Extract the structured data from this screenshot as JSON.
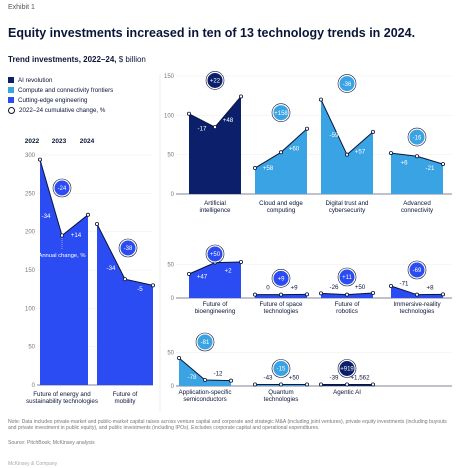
{
  "header": {
    "exhibit": "Exhibit 1",
    "title": "Equity investments increased in ten of 13 technology trends in 2024.",
    "subtitle_bold": "Trend investments, 2022–24,",
    "subtitle_unit": "$ billion"
  },
  "legend": {
    "items": [
      "AI revolution",
      "Compute and connectivity frontiers",
      "Cutting-edge engineering"
    ],
    "change_label": "2022–24 cumulative change, %"
  },
  "colors": {
    "AI revolution": "#0b1f6b",
    "Compute and connectivity frontiers": "#3aa3e3",
    "Cutting-edge engineering": "#2b4cf2",
    "line": "#0b1538",
    "grid": "#dddddd"
  },
  "chart_data": [
    {
      "type": "area",
      "panel": "left",
      "x": [
        "2022",
        "2023",
        "2024"
      ],
      "ylim": [
        0,
        300
      ],
      "yticks": [
        "300",
        "250",
        "200",
        "150",
        "100",
        "50",
        "0"
      ],
      "annotation": "Annual change, %",
      "series": [
        {
          "category": "Cutting-edge engineering",
          "label": "Future of energy and sustainability technologies",
          "values": [
            294,
            195,
            222
          ],
          "change_pct": "-24",
          "annual_changes": [
            "-34",
            "+14"
          ]
        },
        {
          "category": "Cutting-edge engineering",
          "label": "Future of mobility",
          "values": [
            210,
            138,
            130
          ],
          "change_pct": "-38",
          "annual_changes": [
            "-34",
            "-5"
          ]
        }
      ]
    },
    {
      "type": "area",
      "panel": "row1",
      "ylim": [
        0,
        150
      ],
      "yticks": [
        "150",
        "100",
        "50",
        "0"
      ],
      "series": [
        {
          "category": "AI revolution",
          "label": "Artificial intelligence",
          "values": [
            102,
            85,
            124
          ],
          "change_pct": "+22",
          "annual_changes": [
            "-17",
            "+48"
          ]
        },
        {
          "category": "Compute and connectivity frontiers",
          "label": "Cloud and edge computing",
          "values": [
            33,
            53,
            83
          ],
          "change_pct": "+158",
          "annual_changes": [
            "+58",
            "+60"
          ]
        },
        {
          "category": "Compute and connectivity frontiers",
          "label": "Digital trust and cybersecurity",
          "values": [
            120,
            50,
            79
          ],
          "change_pct": "-36",
          "annual_changes": [
            "-59",
            "+57"
          ]
        },
        {
          "category": "Compute and connectivity frontiers",
          "label": "Advanced connectivity",
          "values": [
            52,
            48,
            38
          ],
          "change_pct": "-16",
          "annual_changes": [
            "+6",
            "-21"
          ]
        }
      ]
    },
    {
      "type": "area",
      "panel": "row2",
      "ylim": [
        0,
        60
      ],
      "yticks": [
        "50",
        "0"
      ],
      "series": [
        {
          "category": "Cutting-edge engineering",
          "label": "Future of bioengineering",
          "values": [
            36,
            53,
            54
          ],
          "change_pct": "+50",
          "annual_changes": [
            "+47",
            "+2"
          ]
        },
        {
          "category": "Cutting-edge engineering",
          "label": "Future of space technologies",
          "values": [
            5,
            5,
            5.5
          ],
          "change_pct": "+9",
          "annual_changes": [
            "0",
            "+9"
          ]
        },
        {
          "category": "Cutting-edge engineering",
          "label": "Future of robotics",
          "values": [
            7,
            5,
            7.5
          ],
          "change_pct": "+11",
          "annual_changes": [
            "-26",
            "+50"
          ]
        },
        {
          "category": "Cutting-edge engineering",
          "label": "Immersive-reality technologies",
          "values": [
            18,
            5,
            5.5
          ],
          "change_pct": "-69",
          "annual_changes": [
            "-71",
            "+8"
          ]
        }
      ]
    },
    {
      "type": "area",
      "panel": "row3",
      "ylim": [
        0,
        60
      ],
      "yticks": [
        "50",
        "0"
      ],
      "series": [
        {
          "category": "Compute and connectivity frontiers",
          "label": "Application-specific semiconductors",
          "values": [
            42,
            9,
            8
          ],
          "change_pct": "-81",
          "annual_changes": [
            "-78",
            "-12"
          ]
        },
        {
          "category": "Compute and connectivity frontiers",
          "label": "Quantum technologies",
          "values": [
            2,
            1.2,
            1.7
          ],
          "change_pct": "-15",
          "annual_changes": [
            "-43",
            "+50"
          ]
        },
        {
          "category": "AI revolution",
          "label": "Agentic AI",
          "values": [
            0.05,
            0.03,
            1.1
          ],
          "change_pct": "+919",
          "annual_changes": [
            "-39",
            "+1,562"
          ]
        }
      ]
    }
  ],
  "footer": {
    "note": "Note: Data includes private-market and public-market capital raises across venture capital and corporate and strategic M&A (including joint ventures), private equity investments (including buyouts and private investment in public equity), and public investments (including IPOs). Excludes corporate capital and operational expenditures.",
    "source": "Source: PitchBook; McKinsey analysis",
    "brand": "McKinsey & Company"
  }
}
